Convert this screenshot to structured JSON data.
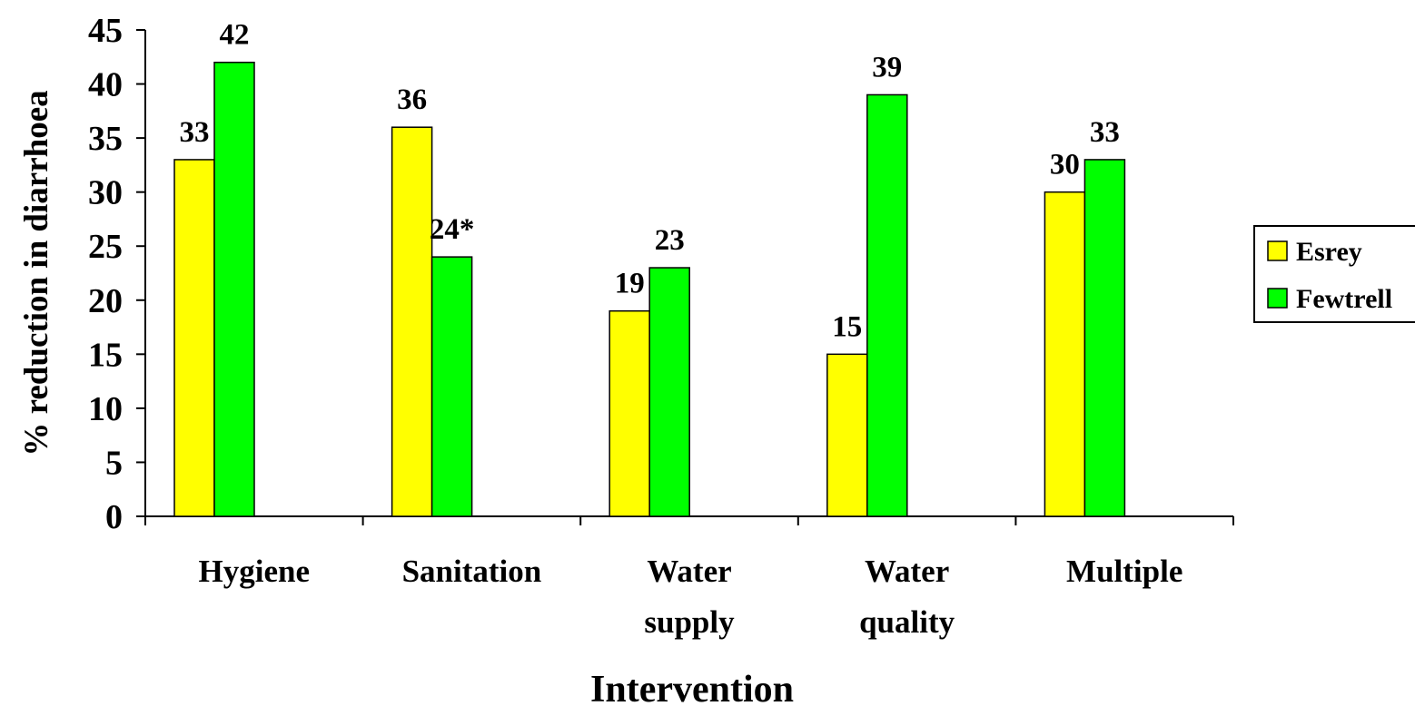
{
  "chart_data": {
    "type": "bar",
    "title": "",
    "xlabel": "Intervention",
    "ylabel": "% reduction in diarrhoea",
    "ylim": [
      0,
      45
    ],
    "ytick_step": 5,
    "grid": false,
    "legend_position": "right",
    "categories": [
      [
        "Hygiene"
      ],
      [
        "Sanitation"
      ],
      [
        "Water",
        "supply"
      ],
      [
        "Water",
        "quality"
      ],
      [
        "Multiple"
      ]
    ],
    "series": [
      {
        "name": "Esrey",
        "color": "#ffff00",
        "values": [
          33,
          36,
          19,
          15,
          30
        ],
        "labels": [
          "33",
          "36",
          "19",
          "15",
          "30"
        ]
      },
      {
        "name": "Fewtrell",
        "color": "#00ff00",
        "values": [
          42,
          24,
          23,
          39,
          33
        ],
        "labels": [
          "42",
          "24*",
          "23",
          "39",
          "33"
        ]
      }
    ]
  }
}
